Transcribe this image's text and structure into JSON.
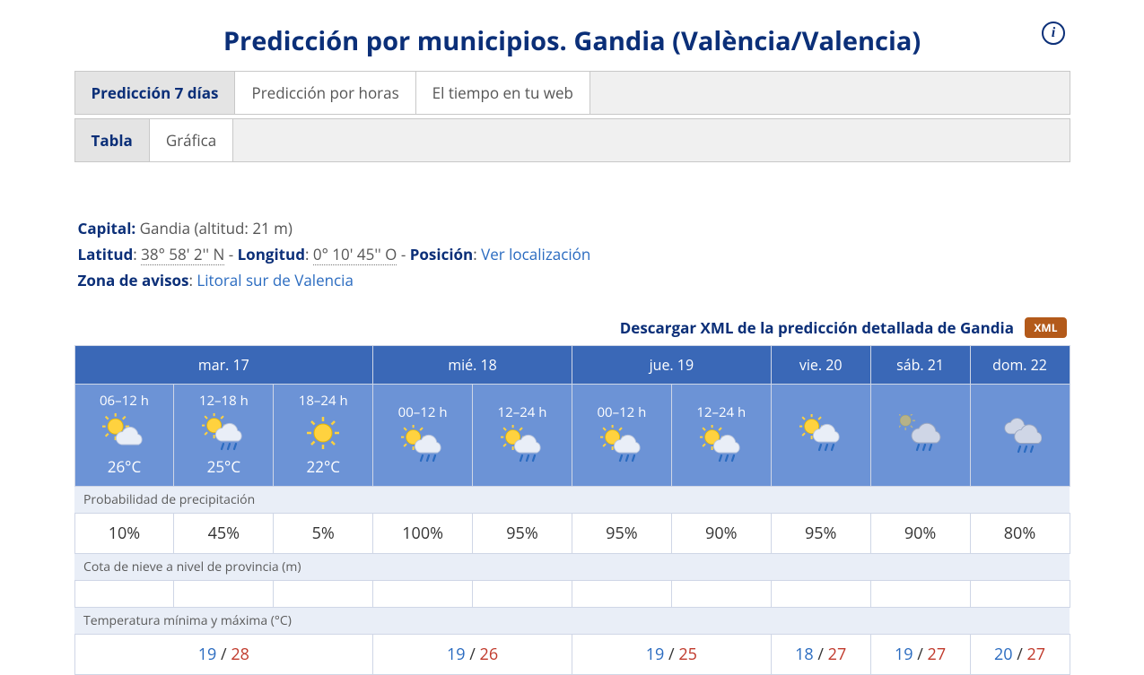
{
  "title": "Predicción por municipios. Gandia (València/Valencia)",
  "info_icon_glyph": "i",
  "tabs": {
    "main": [
      {
        "label": "Predicción 7 días",
        "active": true
      },
      {
        "label": "Predicción por horas",
        "active": false
      },
      {
        "label": "El tiempo en tu web",
        "active": false
      }
    ],
    "sub": [
      {
        "label": "Tabla",
        "active": true
      },
      {
        "label": "Gráfica",
        "active": false
      }
    ]
  },
  "meta": {
    "capital_label": "Capital:",
    "capital_value": "Gandia (altitud: 21 m)",
    "lat_label": "Latitud",
    "lat_value": "38° 58' 2'' N",
    "lon_label": "Longitud",
    "lon_value": "0° 10' 45'' O",
    "pos_label": "Posición",
    "pos_link": "Ver localización",
    "zone_label": "Zona de avisos",
    "zone_value": "Litoral sur de Valencia",
    "sep_dash": " - ",
    "colon_sp": ": "
  },
  "download": {
    "text": "Descargar XML de la predicción detallada de Gandia",
    "badge": "XML"
  },
  "forecast": {
    "colors": {
      "header_bg": "#3a68b7",
      "sky_bg": "#6c93d6",
      "section_bg": "#e9eef7",
      "border": "#cfd6e6",
      "min": "#2a6bc0",
      "max": "#c0392b"
    },
    "days": [
      {
        "label": "mar. 17",
        "span": 3
      },
      {
        "label": "mié. 18",
        "span": 2
      },
      {
        "label": "jue. 19",
        "span": 2
      },
      {
        "label": "vie. 20",
        "span": 1
      },
      {
        "label": "sáb. 21",
        "span": 1
      },
      {
        "label": "dom. 22",
        "span": 1
      }
    ],
    "slots": [
      {
        "period": "06–12 h",
        "icon": "sun-cloud",
        "temp": "26°C"
      },
      {
        "period": "12–18 h",
        "icon": "sun-rain",
        "temp": "25°C"
      },
      {
        "period": "18–24 h",
        "icon": "sun",
        "temp": "22°C"
      },
      {
        "period": "00–12 h",
        "icon": "sun-rain",
        "temp": ""
      },
      {
        "period": "12–24 h",
        "icon": "sun-rain",
        "temp": ""
      },
      {
        "period": "00–12 h",
        "icon": "sun-rain",
        "temp": ""
      },
      {
        "period": "12–24 h",
        "icon": "sun-rain",
        "temp": ""
      },
      {
        "period": "",
        "icon": "sun-rain",
        "temp": ""
      },
      {
        "period": "",
        "icon": "cloud-rain",
        "temp": ""
      },
      {
        "period": "",
        "icon": "clouds-rain",
        "temp": ""
      }
    ],
    "sections": {
      "precip_label": "Probabilidad de precipitación",
      "precip_values": [
        "10%",
        "45%",
        "5%",
        "100%",
        "95%",
        "95%",
        "90%",
        "95%",
        "90%",
        "80%"
      ],
      "snow_label": "Cota de nieve a nivel de provincia (m)",
      "snow_values": [
        "",
        "",
        "",
        "",
        "",
        "",
        "",
        "",
        "",
        ""
      ],
      "temp_label": "Temperatura mínima y máxima (°C)",
      "temp_groups": [
        {
          "span": 3,
          "min": "19",
          "max": "28"
        },
        {
          "span": 2,
          "min": "19",
          "max": "26"
        },
        {
          "span": 2,
          "min": "19",
          "max": "25"
        },
        {
          "span": 1,
          "min": "18",
          "max": "27"
        },
        {
          "span": 1,
          "min": "19",
          "max": "27"
        },
        {
          "span": 1,
          "min": "20",
          "max": "27"
        }
      ],
      "temp_sep": " / "
    }
  }
}
